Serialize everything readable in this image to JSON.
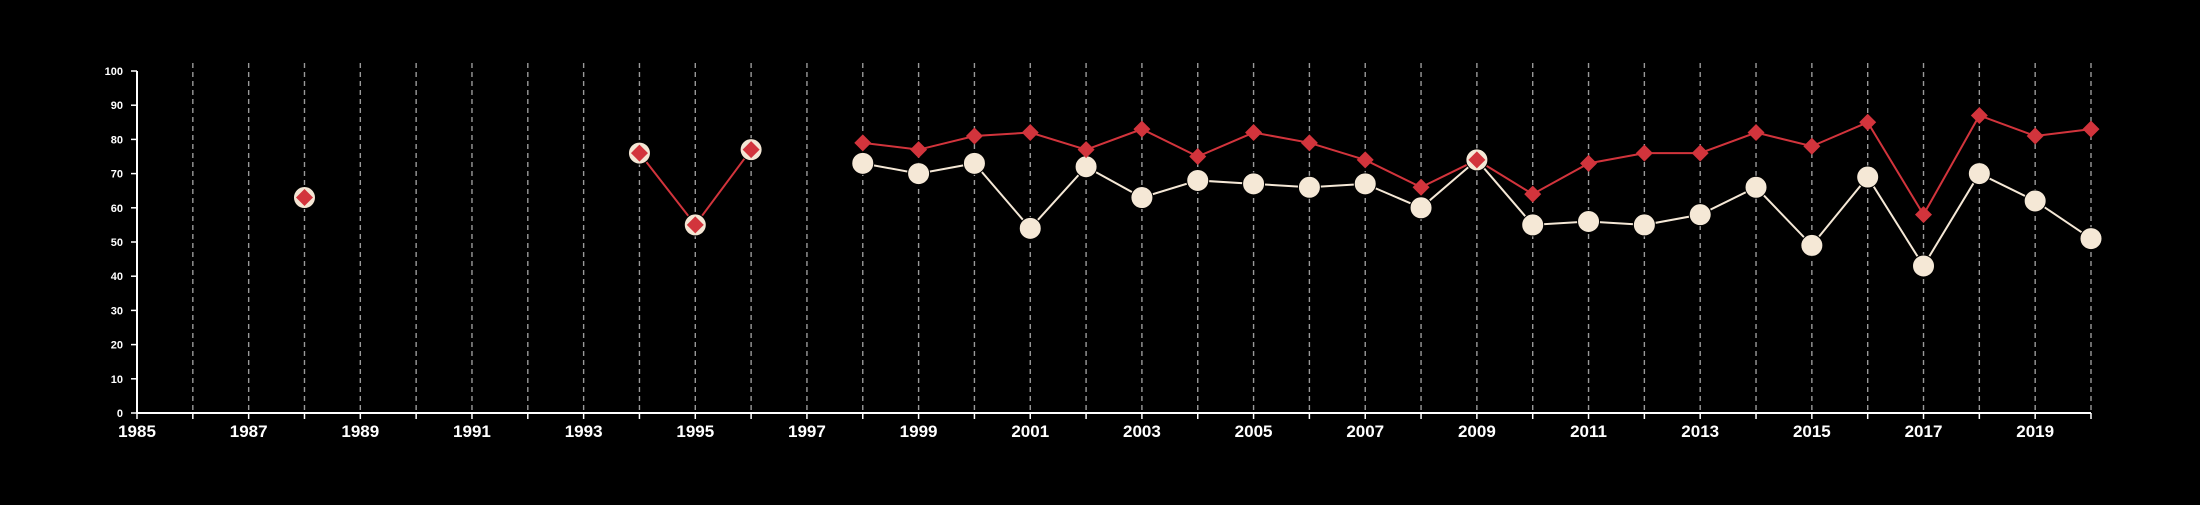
{
  "chart_data": {
    "type": "line",
    "title": "",
    "xlabel": "",
    "ylabel": "",
    "xlim": [
      1985,
      2020
    ],
    "ylim": [
      0,
      100
    ],
    "y_ticks": [
      0,
      10,
      20,
      30,
      40,
      50,
      60,
      70,
      80,
      90,
      100
    ],
    "x_tick_labels": [
      1985,
      1987,
      1989,
      1991,
      1993,
      1995,
      1997,
      1999,
      2001,
      2003,
      2005,
      2007,
      2009,
      2011,
      2013,
      2015,
      2017,
      2019
    ],
    "grid": "vertical dashed lines at every year",
    "legend": "none",
    "background": "#000000",
    "axis_color": "#ffffff",
    "grid_color": "#9a9a9a",
    "series": [
      {
        "marker": "diamond",
        "color": "#d2343c",
        "outline_color": "#f4e6d4",
        "points": [
          [
            1988,
            63
          ],
          [
            1994,
            76
          ],
          [
            1995,
            55
          ],
          [
            1996,
            77
          ],
          [
            1998,
            79
          ],
          [
            1999,
            77
          ],
          [
            2000,
            81
          ],
          [
            2001,
            82
          ],
          [
            2002,
            77
          ],
          [
            2003,
            83
          ],
          [
            2004,
            75
          ],
          [
            2005,
            82
          ],
          [
            2006,
            79
          ],
          [
            2007,
            74
          ],
          [
            2008,
            66
          ],
          [
            2009,
            74
          ],
          [
            2010,
            64
          ],
          [
            2011,
            73
          ],
          [
            2012,
            76
          ],
          [
            2013,
            76
          ],
          [
            2014,
            82
          ],
          [
            2015,
            78
          ],
          [
            2016,
            85
          ],
          [
            2017,
            58
          ],
          [
            2018,
            87
          ],
          [
            2019,
            81
          ],
          [
            2020,
            83
          ]
        ]
      },
      {
        "marker": "circle",
        "color": "#f5e8d6",
        "points": [
          [
            1998,
            73
          ],
          [
            1999,
            70
          ],
          [
            2000,
            73
          ],
          [
            2001,
            54
          ],
          [
            2002,
            72
          ],
          [
            2003,
            63
          ],
          [
            2004,
            68
          ],
          [
            2005,
            67
          ],
          [
            2006,
            66
          ],
          [
            2007,
            67
          ],
          [
            2008,
            60
          ],
          [
            2009,
            74
          ],
          [
            2010,
            55
          ],
          [
            2011,
            56
          ],
          [
            2012,
            55
          ],
          [
            2013,
            58
          ],
          [
            2014,
            66
          ],
          [
            2015,
            49
          ],
          [
            2016,
            69
          ],
          [
            2017,
            43
          ],
          [
            2018,
            70
          ],
          [
            2019,
            62
          ],
          [
            2020,
            51
          ]
        ]
      }
    ]
  }
}
